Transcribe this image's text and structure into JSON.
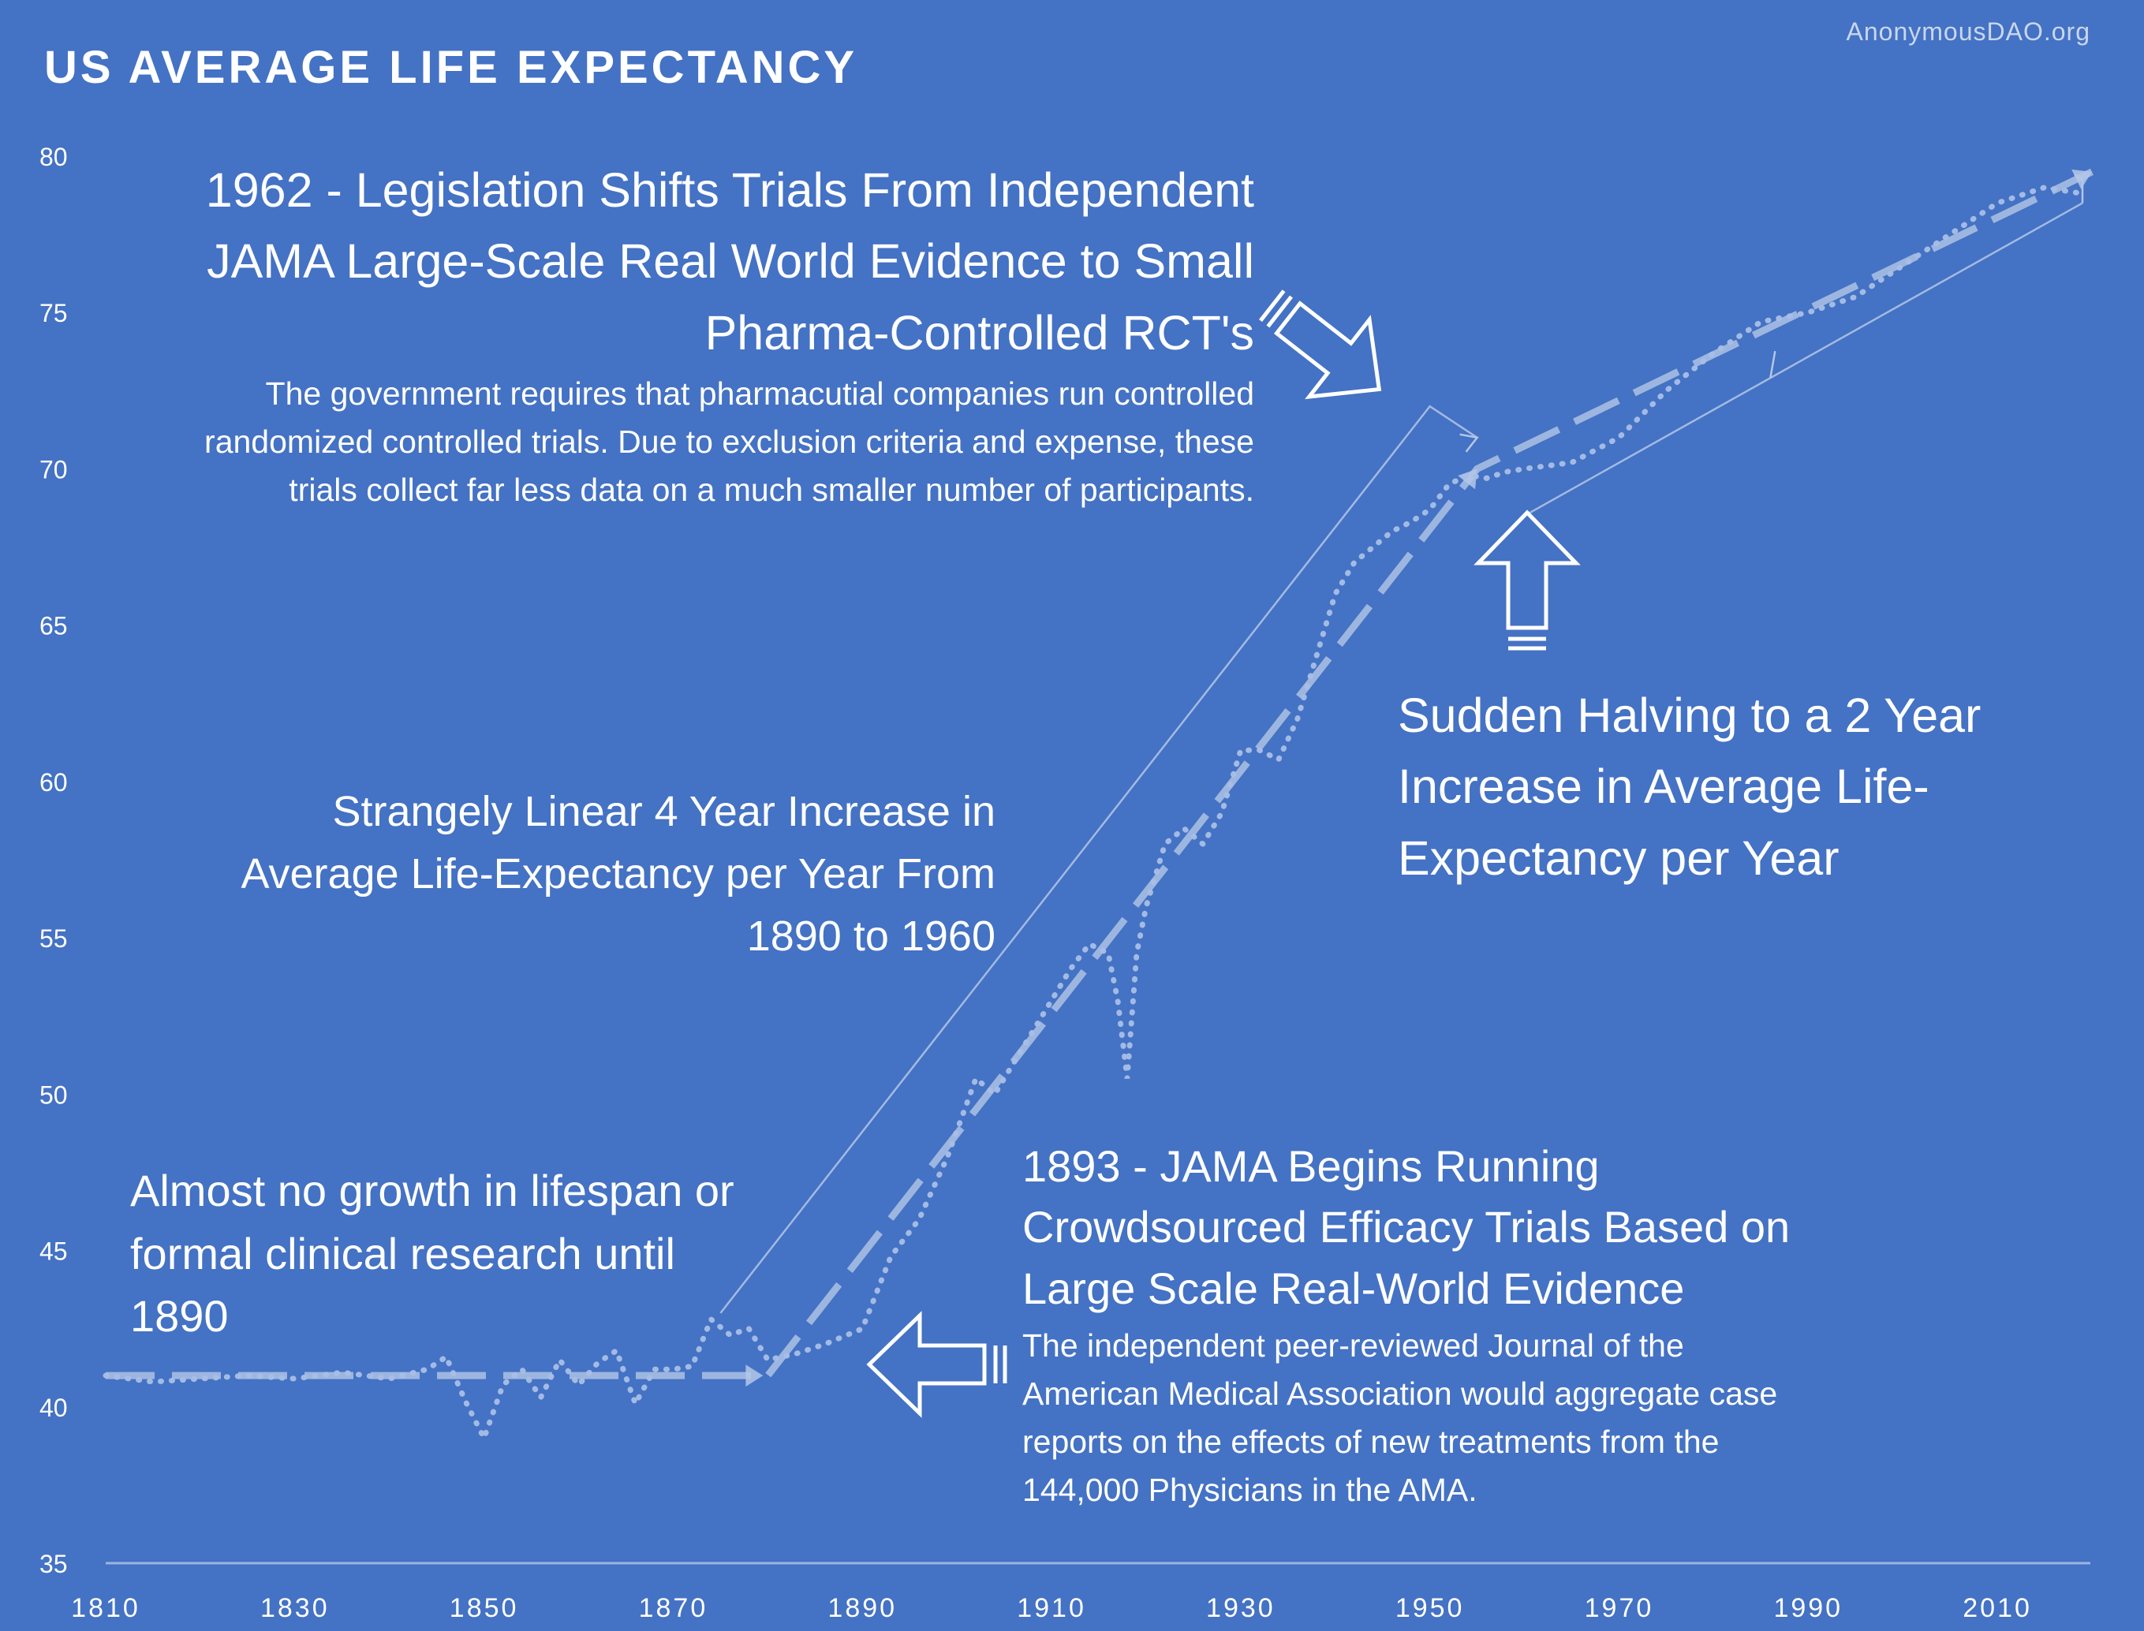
{
  "title": "US AVERAGE LIFE EXPECTANCY",
  "source": "AnonymousDAO.org",
  "colors": {
    "background": "#4472c4",
    "text": "#ffffff",
    "series": "#a9bfe6",
    "trend": "#b4c7e7"
  },
  "annotations": {
    "legislation_1962": {
      "title": "1962 - Legislation Shifts Trials From Independent JAMA Large-Scale Real World Evidence to Small Pharma-Controlled RCT's",
      "body": "The government requires that pharmacutial companies run controlled randomized controlled trials.  Due to exclusion criteria and expense, these trials collect far less data on a much smaller number of participants."
    },
    "linear_increase": "Strangely Linear 4 Year Increase in Average Life-Expectancy per Year From 1890 to 1960",
    "sudden_halving": "Sudden Halving to a 2 Year Increase in Average Life-Expectancy per Year",
    "no_growth": "Almost no growth in lifespan or formal clinical research until 1890",
    "jama_1893": {
      "title": "1893 - JAMA Begins Running Crowdsourced Efficacy Trials Based on Large Scale Real-World Evidence",
      "body": "The independent peer-reviewed Journal of the American Medical Association would aggregate case reports on the effects of new treatments from the 144,000 Physicians in the AMA."
    }
  },
  "chart_data": {
    "type": "line",
    "title": "US AVERAGE LIFE EXPECTANCY",
    "xlabel": "",
    "ylabel": "",
    "xlim": [
      1810,
      2019
    ],
    "ylim": [
      35,
      80
    ],
    "x_ticks": [
      1810,
      1830,
      1850,
      1870,
      1890,
      1910,
      1930,
      1950,
      1970,
      1990,
      2010
    ],
    "y_ticks": [
      35,
      40,
      45,
      50,
      55,
      60,
      65,
      70,
      75,
      80
    ],
    "grid": false,
    "legend": "none",
    "series": [
      {
        "style": "dotted",
        "x": [
          1810,
          1815,
          1820,
          1825,
          1830,
          1835,
          1840,
          1844,
          1846,
          1848,
          1850,
          1852,
          1854,
          1856,
          1858,
          1860,
          1862,
          1864,
          1866,
          1868,
          1870,
          1872,
          1874,
          1876,
          1878,
          1880,
          1883,
          1886,
          1890,
          1893,
          1896,
          1899,
          1902,
          1904,
          1906,
          1908,
          1910,
          1912,
          1914,
          1916,
          1917,
          1918,
          1919,
          1920,
          1922,
          1924,
          1926,
          1928,
          1930,
          1932,
          1934,
          1936,
          1938,
          1940,
          1942,
          1944,
          1946,
          1948,
          1950,
          1952,
          1954,
          1956,
          1958,
          1960,
          1965,
          1970,
          1975,
          1980,
          1985,
          1990,
          1995,
          2000,
          2005,
          2010,
          2015,
          2019
        ],
        "y": [
          41.0,
          40.8,
          40.9,
          41.0,
          40.9,
          41.1,
          40.9,
          41.2,
          41.6,
          40.2,
          39.0,
          40.7,
          41.2,
          40.3,
          41.5,
          40.7,
          41.4,
          41.8,
          40.1,
          41.2,
          41.2,
          41.3,
          42.8,
          42.3,
          42.5,
          41.5,
          41.7,
          42.0,
          42.5,
          44.8,
          46.0,
          48.0,
          50.5,
          50.0,
          51.0,
          52.0,
          53.0,
          54.0,
          54.8,
          54.5,
          53.0,
          50.5,
          54.5,
          56.0,
          58.0,
          58.5,
          58.0,
          59.0,
          61.0,
          61.0,
          60.7,
          62.0,
          64.0,
          66.0,
          67.0,
          67.5,
          68.0,
          68.3,
          68.7,
          69.5,
          69.8,
          69.7,
          69.9,
          70.0,
          70.2,
          71.0,
          72.5,
          73.7,
          74.7,
          75.0,
          75.5,
          76.5,
          77.5,
          78.5,
          79.0,
          78.8
        ]
      },
      {
        "style": "dashed",
        "x": [
          1810,
          1870,
          1880,
          1955,
          2020
        ],
        "y": [
          41.0,
          41.0,
          41.0,
          70.0,
          79.5
        ]
      }
    ],
    "markers": [
      {
        "style": "thin-line",
        "x": [
          1875,
          1950,
          1955
        ],
        "y": [
          43.0,
          72.0,
          71.0
        ]
      },
      {
        "style": "thin-line",
        "x": [
          1960,
          2019
        ],
        "y": [
          68.5,
          78.5
        ]
      }
    ]
  }
}
